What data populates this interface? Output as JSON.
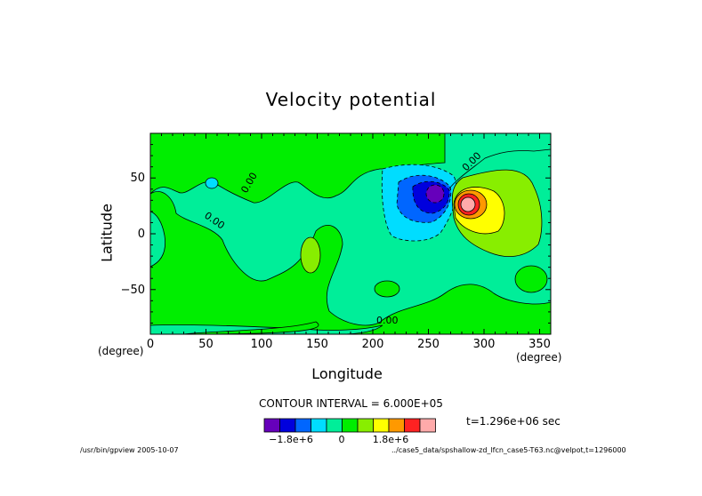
{
  "chart_data": {
    "type": "contour",
    "title": "Velocity potential",
    "xlabel": "Longitude",
    "ylabel": "Latitude",
    "x_unit": "(degree)",
    "y_unit": "(degree)",
    "xlim": [
      0,
      360
    ],
    "ylim": [
      -90,
      90
    ],
    "x_ticks": [
      0,
      50,
      100,
      150,
      200,
      250,
      300,
      350
    ],
    "y_ticks": [
      -50,
      0,
      50
    ],
    "contour_interval_text": "CONTOUR INTERVAL = 6.000E+05",
    "contour_labels": [
      "0.00",
      "0.00",
      "0.00",
      "0.00"
    ],
    "colorbar": {
      "colors": [
        "#6600bb",
        "#0000dd",
        "#0066ff",
        "#00ddff",
        "#00ee99",
        "#00ee00",
        "#88ee00",
        "#ffff00",
        "#ff9900",
        "#ff2222",
        "#ffaaaa"
      ],
      "labels": [
        "-1.8e+6",
        "0",
        "1.8e+6"
      ],
      "label_values": [
        -1800000,
        0,
        1800000
      ]
    },
    "background_level_color": "#00ee99",
    "centers": [
      {
        "lon": 256,
        "lat": 35,
        "value": -2100000
      },
      {
        "lon": 284,
        "lat": 25,
        "value": 2100000
      }
    ]
  },
  "time_text": "t=1.296e+06 sec",
  "footer_left": "/usr/bin/gpview  2005-10-07",
  "footer_right": "../case5_data/spshallow-zd_lfcn_case5-T63.nc@velpot,t=1296000"
}
